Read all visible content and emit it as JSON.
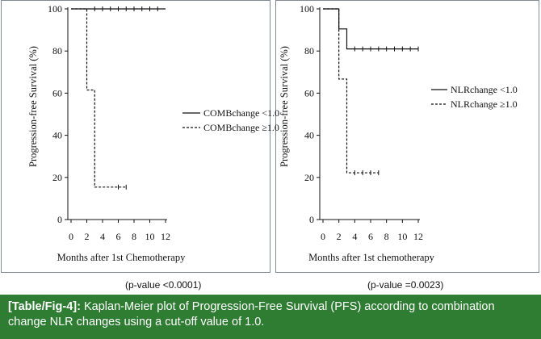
{
  "chart_data": [
    {
      "type": "line",
      "step": true,
      "ylabel": "Progression-free Survival (%)",
      "xlabel": "Months after 1st Chemotherapy",
      "xticks": [
        0,
        2,
        4,
        6,
        8,
        10,
        12
      ],
      "yticks": [
        0,
        20,
        40,
        60,
        80,
        100
      ],
      "xlim": [
        0,
        12
      ],
      "ylim": [
        0,
        100
      ],
      "legend_position": "right",
      "series": [
        {
          "name": "COMBchange <1.0",
          "style": "solid",
          "points": [
            [
              0,
              100
            ],
            [
              12,
              100
            ]
          ],
          "censors": [
            [
              3,
              100
            ],
            [
              4,
              100
            ],
            [
              5,
              100
            ],
            [
              6,
              100
            ],
            [
              7,
              100
            ],
            [
              8,
              100
            ],
            [
              9,
              100
            ],
            [
              10,
              100
            ],
            [
              11,
              100
            ]
          ]
        },
        {
          "name": "COMBchange ≥1.0",
          "style": "dashed",
          "points": [
            [
              0,
              100
            ],
            [
              2,
              100
            ],
            [
              2,
              61.5
            ],
            [
              3,
              61.5
            ],
            [
              3,
              15.4
            ],
            [
              7,
              15.4
            ]
          ],
          "censors": [
            [
              6,
              15.4
            ],
            [
              7,
              15.4
            ]
          ]
        }
      ],
      "pvalue": "(p-value <0.0001)"
    },
    {
      "type": "line",
      "step": true,
      "ylabel": "Progression-free Survival (%)",
      "xlabel": "Months after 1st chemotherapy",
      "xticks": [
        0,
        2,
        4,
        6,
        8,
        10,
        12
      ],
      "yticks": [
        0,
        20,
        40,
        60,
        80,
        100
      ],
      "xlim": [
        0,
        12
      ],
      "ylim": [
        0,
        100
      ],
      "legend_position": "right",
      "series": [
        {
          "name": "NLRchange <1.0",
          "style": "solid",
          "points": [
            [
              0,
              100
            ],
            [
              2,
              100
            ],
            [
              2,
              90.5
            ],
            [
              3,
              90.5
            ],
            [
              3,
              81
            ],
            [
              12,
              81
            ]
          ],
          "censors": [
            [
              4,
              81
            ],
            [
              5,
              81
            ],
            [
              6,
              81
            ],
            [
              7,
              81
            ],
            [
              8,
              81
            ],
            [
              9,
              81
            ],
            [
              10,
              81
            ],
            [
              11,
              81
            ],
            [
              12,
              81
            ]
          ]
        },
        {
          "name": "NLRchange ≥1.0",
          "style": "dashed",
          "points": [
            [
              0,
              100
            ],
            [
              2,
              100
            ],
            [
              2,
              66.7
            ],
            [
              3,
              66.7
            ],
            [
              3,
              22.2
            ],
            [
              7,
              22.2
            ]
          ],
          "censors": [
            [
              4,
              22.2
            ],
            [
              5,
              22.2
            ],
            [
              6,
              22.2
            ],
            [
              7,
              22.2
            ]
          ]
        }
      ],
      "pvalue": "(p-value =0.0023)"
    }
  ],
  "caption": {
    "label": "[Table/Fig-4]:",
    "text": "Kaplan-Meier plot of Progression-Free Survival (PFS) according to combination change NLR changes using a cut-off value of 1.0."
  },
  "colors": {
    "caption_bg": "#2e7d32",
    "caption_text": "#ffffff",
    "plot_line": "#111111"
  }
}
